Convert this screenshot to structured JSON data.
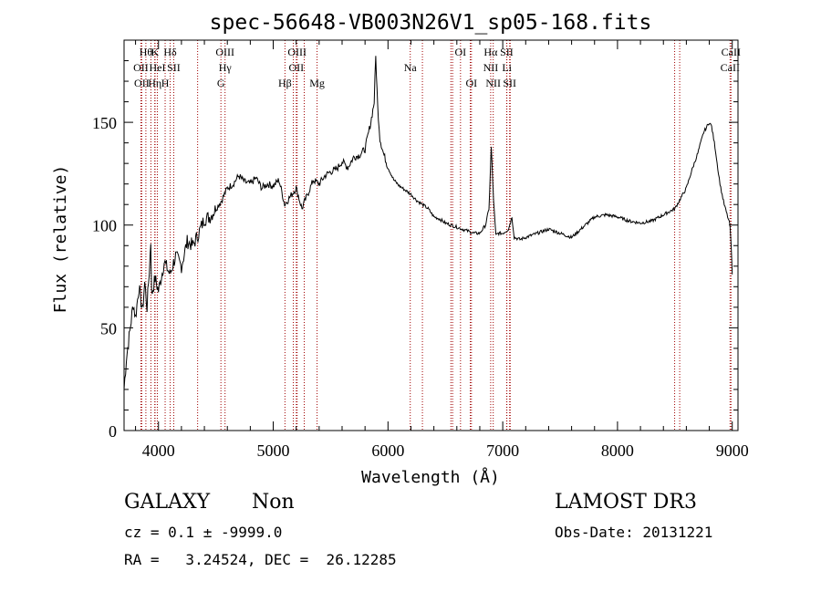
{
  "chart_data": {
    "type": "line",
    "title": "spec-56648-VB003N26V1_sp05-168.fits",
    "xlabel": "Wavelength (Å)",
    "ylabel": "Flux (relative)",
    "xlim": [
      3700,
      9050
    ],
    "ylim": [
      0,
      190
    ],
    "xticks": [
      4000,
      5000,
      6000,
      7000,
      8000,
      9000
    ],
    "yticks": [
      0,
      50,
      100,
      150
    ],
    "series": [
      {
        "name": "spectrum",
        "x": [
          3700,
          3720,
          3750,
          3780,
          3800,
          3830,
          3860,
          3880,
          3900,
          3920,
          3933,
          3940,
          3970,
          4000,
          4050,
          4100,
          4150,
          4200,
          4250,
          4300,
          4350,
          4400,
          4450,
          4500,
          4550,
          4600,
          4650,
          4700,
          4750,
          4800,
          4850,
          4900,
          4950,
          5000,
          5050,
          5100,
          5150,
          5200,
          5250,
          5300,
          5350,
          5400,
          5450,
          5500,
          5550,
          5600,
          5650,
          5700,
          5750,
          5800,
          5850,
          5880,
          5893,
          5910,
          5930,
          5960,
          6000,
          6050,
          6100,
          6150,
          6200,
          6250,
          6300,
          6350,
          6400,
          6450,
          6500,
          6550,
          6600,
          6650,
          6700,
          6750,
          6800,
          6850,
          6880,
          6900,
          6920,
          6940,
          6960,
          7000,
          7050,
          7080,
          7100,
          7150,
          7200,
          7300,
          7400,
          7500,
          7600,
          7700,
          7800,
          7900,
          8000,
          8100,
          8200,
          8300,
          8400,
          8500,
          8600,
          8650,
          8700,
          8750,
          8800,
          8820,
          8850,
          8880,
          8900,
          8930,
          8960,
          8980,
          8990,
          9000
        ],
        "y": [
          20,
          35,
          48,
          62,
          55,
          70,
          58,
          72,
          60,
          78,
          92,
          66,
          74,
          68,
          82,
          76,
          85,
          80,
          92,
          90,
          96,
          103,
          104,
          108,
          112,
          118,
          120,
          124,
          121,
          120,
          123,
          118,
          120,
          119,
          122,
          110,
          114,
          118,
          108,
          115,
          122,
          120,
          124,
          126,
          127,
          131,
          128,
          133,
          134,
          137,
          150,
          160,
          182,
          158,
          142,
          135,
          128,
          122,
          119,
          117,
          115,
          112,
          110,
          108,
          104,
          103,
          101,
          100,
          99,
          98,
          97,
          96,
          96,
          100,
          108,
          138,
          112,
          95,
          96,
          96,
          98,
          104,
          94,
          93,
          94,
          96,
          98,
          96,
          94,
          99,
          104,
          105,
          104,
          102,
          101,
          102,
          105,
          108,
          118,
          127,
          135,
          145,
          150,
          148,
          138,
          125,
          118,
          110,
          104,
          100,
          90,
          76
        ]
      }
    ],
    "line_markers": {
      "top": [
        {
          "x": 3890,
          "label": "Hθ"
        },
        {
          "x": 3969,
          "label": "K"
        },
        {
          "x": 4102,
          "label": "Hδ"
        },
        {
          "x": 4580,
          "label": "OIII"
        },
        {
          "x": 5208,
          "label": "OIII"
        },
        {
          "x": 6632,
          "label": "OI"
        },
        {
          "x": 6895,
          "label": "Hα"
        },
        {
          "x": 7034,
          "label": "SII"
        },
        {
          "x": 8989,
          "label": "CaII"
        }
      ],
      "mid": [
        {
          "x": 3847,
          "label": "OII"
        },
        {
          "x": 3990,
          "label": "HeI"
        },
        {
          "x": 4133,
          "label": "SII"
        },
        {
          "x": 4580,
          "label": "Hγ"
        },
        {
          "x": 5201,
          "label": "OII"
        },
        {
          "x": 6194,
          "label": "Na"
        },
        {
          "x": 6895,
          "label": "NII"
        },
        {
          "x": 7036,
          "label": "Li"
        },
        {
          "x": 8981,
          "label": "CaII"
        }
      ],
      "bottom": [
        {
          "x": 3854,
          "label": "OII"
        },
        {
          "x": 3968,
          "label": "Hη"
        },
        {
          "x": 4058,
          "label": "H"
        },
        {
          "x": 4544,
          "label": "G"
        },
        {
          "x": 5102,
          "label": "Hβ"
        },
        {
          "x": 5382,
          "label": "Mg"
        },
        {
          "x": 6727,
          "label": "OI"
        },
        {
          "x": 6917,
          "label": "NII"
        },
        {
          "x": 7060,
          "label": "SII"
        }
      ],
      "extra_lines_x": [
        3934,
        3970,
        4102,
        4341,
        4580,
        5175,
        5270,
        6300,
        6548,
        6563,
        6717,
        7065,
        8498,
        8542
      ]
    }
  },
  "info": {
    "class": "GALAXY",
    "subclass": "Non",
    "survey": "LAMOST DR3",
    "cz_line": "cz = 0.1 ± -9999.0",
    "obs_date_line": "Obs-Date: 20131221",
    "radec_line": "RA =   3.24524, DEC =  26.12285"
  }
}
